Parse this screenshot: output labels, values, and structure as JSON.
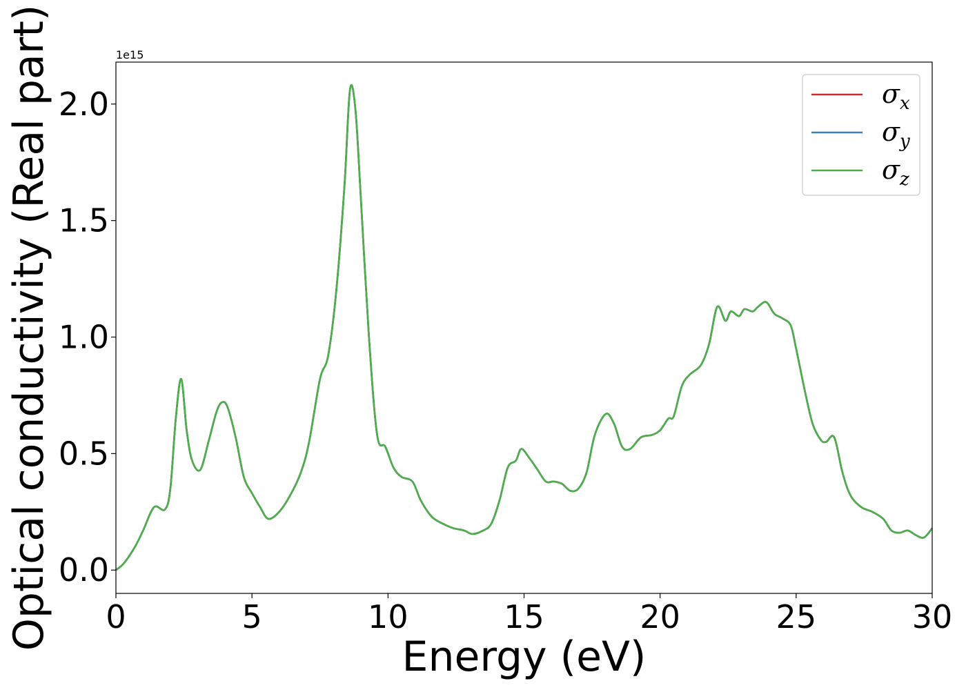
{
  "chart_data": {
    "type": "line",
    "xlabel": "Energy (eV)",
    "ylabel": "Optical conductivity (Real part)",
    "y_offset_label": "1e15",
    "y_scale": 1000000000000000.0,
    "xlim": [
      0,
      30
    ],
    "ylim": [
      -0.1,
      2.18
    ],
    "x_ticks": [
      0,
      5,
      10,
      15,
      20,
      25,
      30
    ],
    "x_tick_labels": [
      "0",
      "5",
      "10",
      "15",
      "20",
      "25",
      "30"
    ],
    "y_ticks": [
      0.0,
      0.5,
      1.0,
      1.5,
      2.0
    ],
    "y_tick_labels": [
      "0.0",
      "0.5",
      "1.0",
      "1.5",
      "2.0"
    ],
    "grid": false,
    "legend_position": "top-right",
    "series": [
      {
        "name": "σx",
        "symbol": "σ",
        "subscript": "x",
        "color": "#d62728",
        "x": [
          0,
          0.3,
          0.7,
          1.0,
          1.4,
          1.8,
          2.0,
          2.2,
          2.4,
          2.6,
          2.8,
          3.1,
          3.4,
          3.7,
          3.9,
          4.1,
          4.4,
          4.7,
          5.0,
          5.3,
          5.6,
          6.0,
          6.4,
          6.8,
          7.1,
          7.5,
          7.8,
          8.1,
          8.4,
          8.6,
          8.8,
          9.0,
          9.3,
          9.6,
          9.9,
          10.2,
          10.5,
          10.9,
          11.2,
          11.6,
          12.0,
          12.4,
          12.8,
          13.1,
          13.5,
          13.8,
          14.1,
          14.4,
          14.7,
          14.9,
          15.2,
          15.5,
          15.8,
          16.1,
          16.4,
          16.7,
          17.0,
          17.3,
          17.6,
          18.0,
          18.3,
          18.6,
          18.9,
          19.3,
          19.7,
          20.0,
          20.3,
          20.5,
          20.8,
          21.1,
          21.5,
          21.8,
          22.1,
          22.4,
          22.6,
          22.9,
          23.1,
          23.4,
          23.6,
          23.9,
          24.2,
          24.5,
          24.8,
          25.0,
          25.3,
          25.6,
          25.9,
          26.1,
          26.4,
          26.7,
          27.0,
          27.4,
          27.8,
          28.2,
          28.5,
          28.8,
          29.1,
          29.4,
          29.7,
          30.0
        ],
        "y": [
          0.0,
          0.03,
          0.1,
          0.17,
          0.27,
          0.26,
          0.35,
          0.65,
          0.82,
          0.6,
          0.47,
          0.43,
          0.55,
          0.68,
          0.72,
          0.7,
          0.57,
          0.4,
          0.33,
          0.27,
          0.22,
          0.25,
          0.32,
          0.42,
          0.55,
          0.82,
          0.92,
          1.2,
          1.65,
          2.06,
          1.98,
          1.6,
          1.0,
          0.58,
          0.53,
          0.44,
          0.4,
          0.38,
          0.3,
          0.23,
          0.2,
          0.18,
          0.17,
          0.155,
          0.17,
          0.2,
          0.3,
          0.44,
          0.47,
          0.52,
          0.48,
          0.43,
          0.38,
          0.38,
          0.37,
          0.34,
          0.35,
          0.42,
          0.58,
          0.67,
          0.63,
          0.53,
          0.52,
          0.57,
          0.58,
          0.6,
          0.65,
          0.66,
          0.79,
          0.84,
          0.88,
          0.97,
          1.13,
          1.07,
          1.11,
          1.09,
          1.12,
          1.11,
          1.13,
          1.15,
          1.1,
          1.08,
          1.05,
          0.95,
          0.78,
          0.63,
          0.56,
          0.55,
          0.57,
          0.42,
          0.32,
          0.27,
          0.25,
          0.22,
          0.17,
          0.16,
          0.17,
          0.15,
          0.14,
          0.18
        ]
      },
      {
        "name": "σy",
        "symbol": "σ",
        "subscript": "y",
        "color": "#3a7fb6",
        "x": [
          0,
          0.3,
          0.7,
          1.0,
          1.4,
          1.8,
          2.0,
          2.2,
          2.4,
          2.6,
          2.8,
          3.1,
          3.4,
          3.7,
          3.9,
          4.1,
          4.4,
          4.7,
          5.0,
          5.3,
          5.6,
          6.0,
          6.4,
          6.8,
          7.1,
          7.5,
          7.8,
          8.1,
          8.4,
          8.6,
          8.8,
          9.0,
          9.3,
          9.6,
          9.9,
          10.2,
          10.5,
          10.9,
          11.2,
          11.6,
          12.0,
          12.4,
          12.8,
          13.1,
          13.5,
          13.8,
          14.1,
          14.4,
          14.7,
          14.9,
          15.2,
          15.5,
          15.8,
          16.1,
          16.4,
          16.7,
          17.0,
          17.3,
          17.6,
          18.0,
          18.3,
          18.6,
          18.9,
          19.3,
          19.7,
          20.0,
          20.3,
          20.5,
          20.8,
          21.1,
          21.5,
          21.8,
          22.1,
          22.4,
          22.6,
          22.9,
          23.1,
          23.4,
          23.6,
          23.9,
          24.2,
          24.5,
          24.8,
          25.0,
          25.3,
          25.6,
          25.9,
          26.1,
          26.4,
          26.7,
          27.0,
          27.4,
          27.8,
          28.2,
          28.5,
          28.8,
          29.1,
          29.4,
          29.7,
          30.0
        ],
        "y": [
          0.0,
          0.03,
          0.1,
          0.17,
          0.27,
          0.26,
          0.35,
          0.65,
          0.82,
          0.6,
          0.47,
          0.43,
          0.55,
          0.68,
          0.72,
          0.7,
          0.57,
          0.4,
          0.33,
          0.27,
          0.22,
          0.25,
          0.32,
          0.42,
          0.55,
          0.82,
          0.92,
          1.2,
          1.65,
          2.06,
          1.98,
          1.6,
          1.0,
          0.58,
          0.53,
          0.44,
          0.4,
          0.38,
          0.3,
          0.23,
          0.2,
          0.18,
          0.17,
          0.155,
          0.17,
          0.2,
          0.3,
          0.44,
          0.47,
          0.52,
          0.48,
          0.43,
          0.38,
          0.38,
          0.37,
          0.34,
          0.35,
          0.42,
          0.58,
          0.67,
          0.63,
          0.53,
          0.52,
          0.57,
          0.58,
          0.6,
          0.65,
          0.66,
          0.79,
          0.84,
          0.88,
          0.97,
          1.13,
          1.07,
          1.11,
          1.09,
          1.12,
          1.11,
          1.13,
          1.15,
          1.1,
          1.08,
          1.05,
          0.95,
          0.78,
          0.63,
          0.56,
          0.55,
          0.57,
          0.42,
          0.32,
          0.27,
          0.25,
          0.22,
          0.17,
          0.16,
          0.17,
          0.15,
          0.14,
          0.18
        ]
      },
      {
        "name": "σz",
        "symbol": "σ",
        "subscript": "z",
        "color": "#4daf4a",
        "x": [
          0,
          0.3,
          0.7,
          1.0,
          1.4,
          1.8,
          2.0,
          2.2,
          2.4,
          2.6,
          2.8,
          3.1,
          3.4,
          3.7,
          3.9,
          4.1,
          4.4,
          4.7,
          5.0,
          5.3,
          5.6,
          6.0,
          6.4,
          6.8,
          7.1,
          7.5,
          7.8,
          8.1,
          8.4,
          8.6,
          8.8,
          9.0,
          9.3,
          9.6,
          9.9,
          10.2,
          10.5,
          10.9,
          11.2,
          11.6,
          12.0,
          12.4,
          12.8,
          13.1,
          13.5,
          13.8,
          14.1,
          14.4,
          14.7,
          14.9,
          15.2,
          15.5,
          15.8,
          16.1,
          16.4,
          16.7,
          17.0,
          17.3,
          17.6,
          18.0,
          18.3,
          18.6,
          18.9,
          19.3,
          19.7,
          20.0,
          20.3,
          20.5,
          20.8,
          21.1,
          21.5,
          21.8,
          22.1,
          22.4,
          22.6,
          22.9,
          23.1,
          23.4,
          23.6,
          23.9,
          24.2,
          24.5,
          24.8,
          25.0,
          25.3,
          25.6,
          25.9,
          26.1,
          26.4,
          26.7,
          27.0,
          27.4,
          27.8,
          28.2,
          28.5,
          28.8,
          29.1,
          29.4,
          29.7,
          30.0
        ],
        "y": [
          0.0,
          0.03,
          0.1,
          0.17,
          0.27,
          0.26,
          0.35,
          0.65,
          0.82,
          0.6,
          0.47,
          0.43,
          0.55,
          0.68,
          0.72,
          0.7,
          0.57,
          0.4,
          0.33,
          0.27,
          0.22,
          0.25,
          0.32,
          0.42,
          0.55,
          0.82,
          0.92,
          1.2,
          1.65,
          2.06,
          1.98,
          1.6,
          1.0,
          0.58,
          0.53,
          0.44,
          0.4,
          0.38,
          0.3,
          0.23,
          0.2,
          0.18,
          0.17,
          0.155,
          0.17,
          0.2,
          0.3,
          0.44,
          0.47,
          0.52,
          0.48,
          0.43,
          0.38,
          0.38,
          0.37,
          0.34,
          0.35,
          0.42,
          0.58,
          0.67,
          0.63,
          0.53,
          0.52,
          0.57,
          0.58,
          0.6,
          0.65,
          0.66,
          0.79,
          0.84,
          0.88,
          0.97,
          1.13,
          1.07,
          1.11,
          1.09,
          1.12,
          1.11,
          1.13,
          1.15,
          1.1,
          1.08,
          1.05,
          0.95,
          0.78,
          0.63,
          0.56,
          0.55,
          0.57,
          0.42,
          0.32,
          0.27,
          0.25,
          0.22,
          0.17,
          0.16,
          0.17,
          0.15,
          0.14,
          0.18
        ]
      }
    ]
  }
}
